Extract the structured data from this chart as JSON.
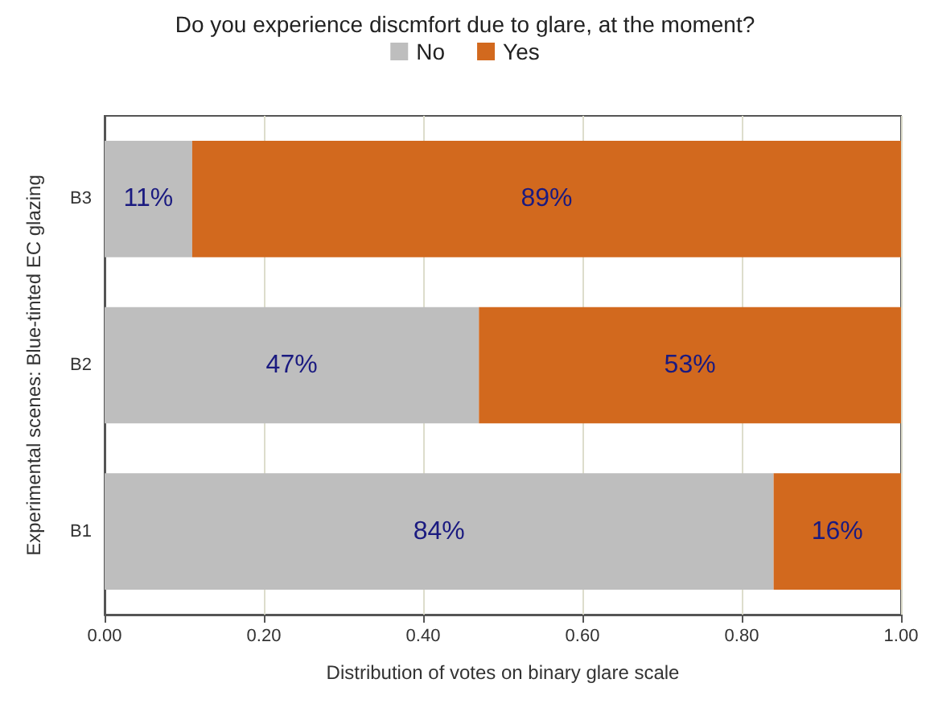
{
  "chart_data": {
    "type": "bar",
    "orientation": "horizontal",
    "stacked": true,
    "title": "Do you experience discmfort due to glare, at the moment?",
    "xlabel": "Distribution of votes on binary glare scale",
    "ylabel": "Experimental scenes: Blue-tinted EC glazing",
    "categories": [
      "B3",
      "B2",
      "B1"
    ],
    "series": [
      {
        "name": "No",
        "color": "#bebebe",
        "values": [
          0.11,
          0.47,
          0.84
        ],
        "value_labels": [
          "11%",
          "47%",
          "84%"
        ]
      },
      {
        "name": "Yes",
        "color": "#d2691e",
        "values": [
          0.89,
          0.53,
          0.16
        ],
        "value_labels": [
          "89%",
          "53%",
          "16%"
        ]
      }
    ],
    "xlim": [
      0,
      1
    ],
    "xticks": [
      {
        "value": 0,
        "label": "0.00"
      },
      {
        "value": 0.2,
        "label": "0.20"
      },
      {
        "value": 0.4,
        "label": "0.40"
      },
      {
        "value": 0.6,
        "label": "0.60"
      },
      {
        "value": 0.8,
        "label": "0.80"
      },
      {
        "value": 1,
        "label": "1.00"
      }
    ],
    "grid": "x",
    "legend": "top"
  }
}
